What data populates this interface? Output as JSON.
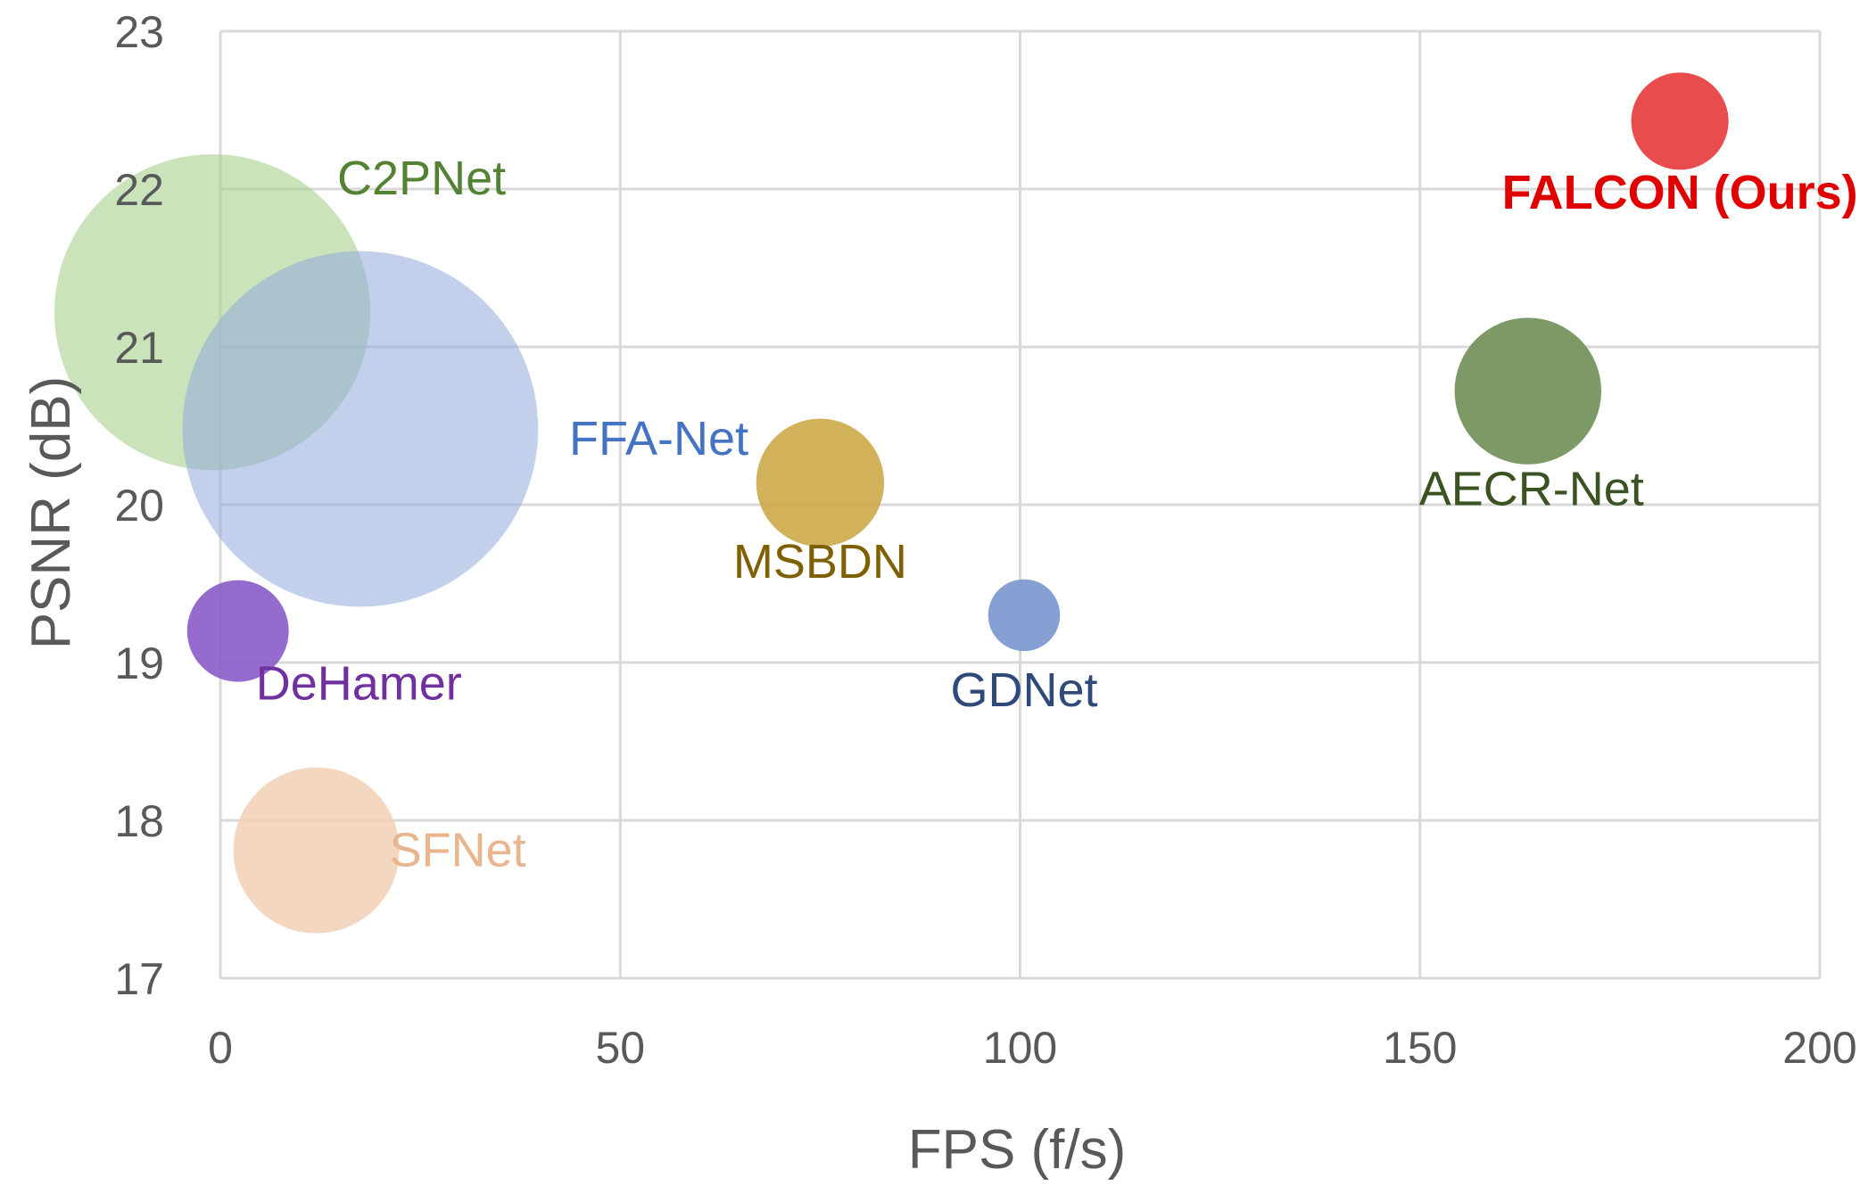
{
  "chart_data": {
    "type": "scatter",
    "variant": "bubble",
    "title": "",
    "xlabel": "FPS (f/s)",
    "ylabel": "PSNR (dB)",
    "xlim": [
      0,
      200
    ],
    "ylim": [
      17,
      23
    ],
    "xticks": [
      0,
      50,
      100,
      150,
      200
    ],
    "yticks": [
      17,
      18,
      19,
      20,
      21,
      22,
      23
    ],
    "grid": true,
    "legend": "none",
    "points": [
      {
        "label": "C2PNet",
        "x": -1,
        "y": 21.22,
        "size": 11.6,
        "color": "#a9d18e",
        "opacity": 0.6,
        "label_color": "#548235",
        "label_bold": false
      },
      {
        "label": "FFA-Net",
        "x": 17.5,
        "y": 20.48,
        "size": 14.7,
        "color": "#8faadc",
        "opacity": 0.55,
        "label_color": "#4472c4",
        "label_bold": false
      },
      {
        "label": "MSBDN",
        "x": 75,
        "y": 20.14,
        "size": 1.9,
        "color": "#c9a33d",
        "opacity": 0.85,
        "label_color": "#7f6000",
        "label_bold": false
      },
      {
        "label": "GDNet",
        "x": 100.5,
        "y": 19.3,
        "size": 0.6,
        "color": "#7f9bd1",
        "opacity": 0.95,
        "label_color": "#2f4a7a",
        "label_bold": false
      },
      {
        "label": "AECR-Net",
        "x": 163.5,
        "y": 20.72,
        "size": 2.5,
        "color": "#6f8f55",
        "opacity": 0.9,
        "label_color": "#3b5323",
        "label_bold": false
      },
      {
        "label": "FALCON (Ours)",
        "x": 182.5,
        "y": 22.43,
        "size": 1.1,
        "color": "#e84c4c",
        "opacity": 1,
        "label_color": "#e00000",
        "label_bold": true
      },
      {
        "label": "DeHamer",
        "x": 2.2,
        "y": 19.2,
        "size": 1.2,
        "color": "#8a5cc8",
        "opacity": 0.9,
        "label_color": "#7030a0",
        "label_bold": false
      },
      {
        "label": "SFNet",
        "x": 12,
        "y": 17.81,
        "size": 3.2,
        "color": "#f2d0b5",
        "opacity": 0.85,
        "label_color": "#e8b58f",
        "label_bold": false
      }
    ]
  }
}
